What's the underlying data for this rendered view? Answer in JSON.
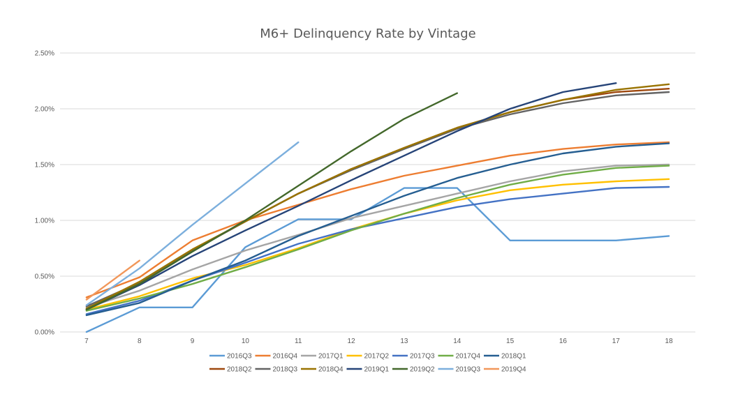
{
  "chart_data": {
    "type": "line",
    "title": "M6+ Delinquency Rate by Vintage",
    "xlabel": "",
    "ylabel": "",
    "categories": [
      7,
      8,
      9,
      10,
      11,
      12,
      13,
      14,
      15,
      16,
      17,
      18
    ],
    "ylim": [
      0,
      0.025
    ],
    "yticks": [
      0,
      0.005,
      0.01,
      0.015,
      0.02,
      0.025
    ],
    "ytick_labels": [
      "0.00%",
      "0.50%",
      "1.00%",
      "1.50%",
      "2.00%",
      "2.50%"
    ],
    "grid": true,
    "legend_position": "bottom",
    "series": [
      {
        "name": "2016Q3",
        "color": "#5B9BD5",
        "values": [
          0.0,
          0.0022,
          0.0022,
          0.0076,
          0.0101,
          0.0101,
          0.0129,
          0.0129,
          0.0082,
          0.0082,
          0.0082,
          0.0086
        ]
      },
      {
        "name": "2016Q4",
        "color": "#ED7D31",
        "values": [
          0.0031,
          0.0049,
          0.0082,
          0.01,
          0.0114,
          0.0128,
          0.014,
          0.0149,
          0.0158,
          0.0164,
          0.0168,
          0.017
        ]
      },
      {
        "name": "2017Q1",
        "color": "#A5A5A5",
        "values": [
          0.0022,
          0.0037,
          0.0056,
          0.0073,
          0.0087,
          0.0102,
          0.0113,
          0.0124,
          0.0135,
          0.0144,
          0.0149,
          0.015
        ]
      },
      {
        "name": "2017Q2",
        "color": "#FFC000",
        "values": [
          0.002,
          0.0032,
          0.0048,
          0.006,
          0.0075,
          0.0092,
          0.0106,
          0.0118,
          0.0127,
          0.0132,
          0.0135,
          0.0137
        ]
      },
      {
        "name": "2017Q3",
        "color": "#4472C4",
        "values": [
          0.0016,
          0.0028,
          0.0046,
          0.0062,
          0.0079,
          0.0092,
          0.0102,
          0.0112,
          0.0119,
          0.0124,
          0.0129,
          0.013
        ]
      },
      {
        "name": "2017Q4",
        "color": "#70AD47",
        "values": [
          0.0019,
          0.003,
          0.0043,
          0.0058,
          0.0074,
          0.0091,
          0.0106,
          0.012,
          0.0132,
          0.0141,
          0.0147,
          0.0149
        ]
      },
      {
        "name": "2018Q1",
        "color": "#255E91",
        "values": [
          0.0015,
          0.0026,
          0.0046,
          0.0064,
          0.0086,
          0.0104,
          0.0122,
          0.0138,
          0.015,
          0.016,
          0.0166,
          0.0169
        ]
      },
      {
        "name": "2018Q2",
        "color": "#9E480E",
        "values": [
          0.002,
          0.0044,
          0.0073,
          0.0099,
          0.0124,
          0.0146,
          0.0165,
          0.0183,
          0.0197,
          0.0208,
          0.0215,
          0.0218
        ]
      },
      {
        "name": "2018Q3",
        "color": "#636363",
        "values": [
          0.0023,
          0.0044,
          0.0073,
          0.0099,
          0.0124,
          0.0145,
          0.0164,
          0.0182,
          0.0195,
          0.0205,
          0.0212,
          0.0215
        ]
      },
      {
        "name": "2018Q4",
        "color": "#997300",
        "values": [
          0.0021,
          0.0045,
          0.0074,
          0.0099,
          0.0124,
          0.0146,
          0.0165,
          0.0183,
          0.0197,
          0.0208,
          0.0217,
          0.0222
        ]
      },
      {
        "name": "2019Q1",
        "color": "#264478",
        "values": [
          0.002,
          0.0042,
          0.0068,
          0.0091,
          0.0113,
          0.0136,
          0.0158,
          0.018,
          0.02,
          0.0215,
          0.0223,
          null
        ]
      },
      {
        "name": "2019Q2",
        "color": "#43682B",
        "values": [
          0.002,
          0.0043,
          0.0072,
          0.01,
          0.0131,
          0.0162,
          0.0191,
          0.0214,
          null,
          null,
          null,
          null
        ]
      },
      {
        "name": "2019Q3",
        "color": "#7CAFDD",
        "values": [
          0.0024,
          0.0057,
          0.0096,
          0.0133,
          0.017,
          null,
          null,
          null,
          null,
          null,
          null,
          null
        ]
      },
      {
        "name": "2019Q4",
        "color": "#F1975A",
        "values": [
          0.0029,
          0.0064,
          null,
          null,
          null,
          null,
          null,
          null,
          null,
          null,
          null,
          null
        ]
      }
    ]
  }
}
